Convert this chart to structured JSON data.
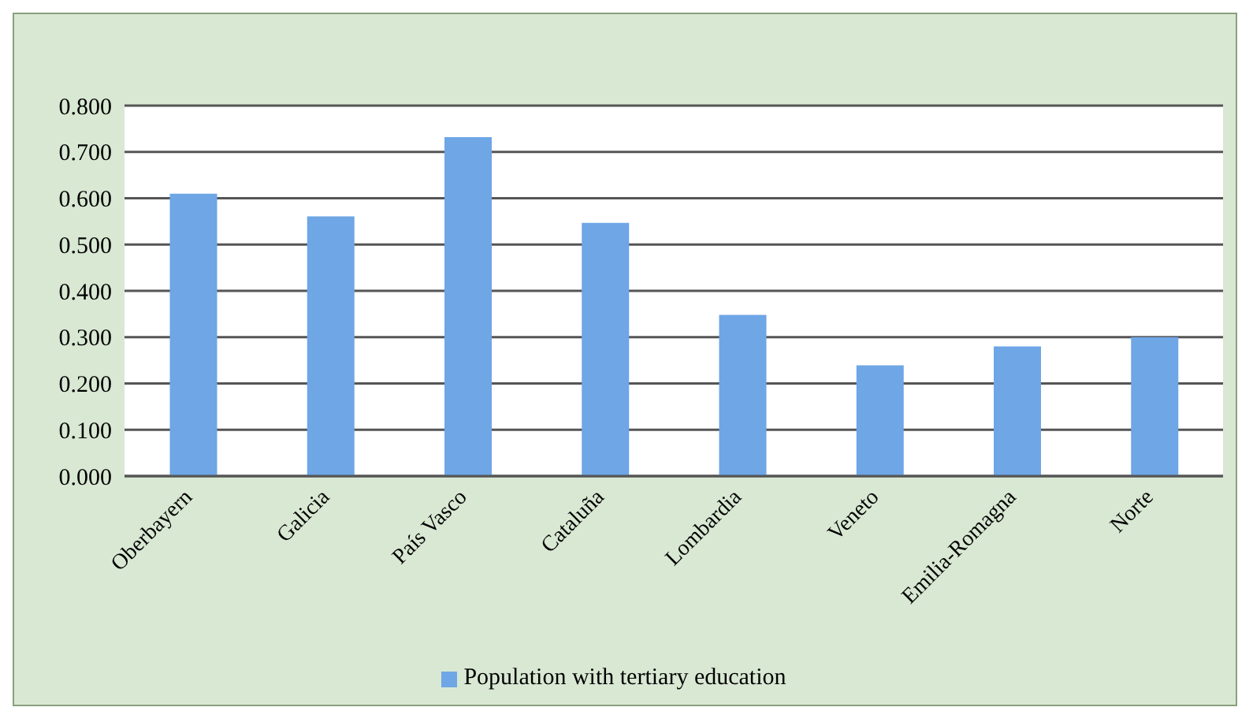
{
  "chart_data": {
    "type": "bar",
    "categories": [
      "Oberbayern",
      "Galicia",
      "País Vasco",
      "Cataluña",
      "Lombardia",
      "Veneto",
      "Emilia-Romagna",
      "Norte"
    ],
    "series": [
      {
        "name": "Population with tertiary education",
        "color": "#6ea6e6",
        "values": [
          0.61,
          0.561,
          0.732,
          0.547,
          0.348,
          0.239,
          0.28,
          0.3
        ]
      }
    ],
    "ylim": [
      0,
      0.8
    ],
    "yticks": [
      {
        "value": 0,
        "label": "0.000"
      },
      {
        "value": 0.1,
        "label": "0.100"
      },
      {
        "value": 0.2,
        "label": "0.200"
      },
      {
        "value": 0.3,
        "label": "0.300"
      },
      {
        "value": 0.4,
        "label": "0.400"
      },
      {
        "value": 0.5,
        "label": "0.500"
      },
      {
        "value": 0.6,
        "label": "0.600"
      },
      {
        "value": 0.7,
        "label": "0.700"
      },
      {
        "value": 0.8,
        "label": "0.800"
      }
    ],
    "grid": "y",
    "legend": "bottom"
  }
}
